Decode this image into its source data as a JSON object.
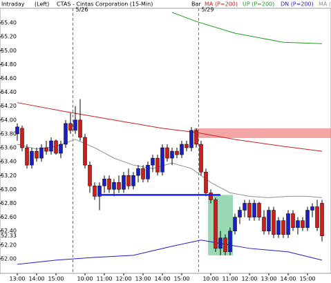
{
  "chart_data": {
    "type": "candlestick",
    "header": [
      "Intraday",
      "(Left)",
      "CTAS - Cintas Corporation (15-Min)"
    ],
    "bar_label": "Bar",
    "categories": [
      "13:00",
      null,
      null,
      null,
      "14:00",
      null,
      null,
      null,
      "15:00",
      null,
      null,
      null,
      null,
      null,
      "10:00",
      null,
      null,
      null,
      "11:00",
      null,
      null,
      null,
      "12:00",
      null,
      null,
      null,
      "13:00",
      null,
      null,
      null,
      "14:00",
      null,
      null,
      null,
      "15:00",
      null,
      null,
      null,
      null,
      null,
      "10:00",
      null,
      null,
      null,
      "11:00",
      null,
      null,
      null,
      "12:00",
      null,
      null,
      null,
      "13:00",
      null,
      null,
      null,
      "14:00",
      null,
      null,
      null,
      "15:00",
      null,
      null,
      null
    ],
    "date_labels": [
      {
        "label": "5/26",
        "index": 12
      },
      {
        "label": "5/29",
        "index": 38
      }
    ],
    "candles": {
      "up_color": "#1c1cc8",
      "down_color": "#d01c1c",
      "open": [
        53.8,
        53.88,
        53.6,
        53.35,
        53.55,
        53.45,
        53.6,
        53.55,
        53.7,
        53.52,
        53.65,
        53.95,
        53.85,
        54.0,
        53.75,
        53.35,
        53.05,
        52.9,
        53.05,
        53.15,
        53.0,
        53.1,
        53.0,
        53.2,
        53.05,
        53.2,
        53.3,
        53.15,
        53.35,
        53.45,
        53.25,
        53.6,
        53.45,
        53.55,
        53.5,
        53.65,
        53.6,
        53.85,
        53.65,
        53.25,
        52.95,
        52.85,
        52.15,
        52.3,
        52.1,
        52.4,
        52.6,
        52.7,
        52.8,
        52.6,
        52.8,
        52.6,
        52.4,
        52.7,
        52.35,
        52.55,
        52.35,
        52.65,
        52.45,
        52.55,
        52.45,
        52.7,
        52.75,
        52.8
      ],
      "high": [
        53.95,
        53.92,
        53.65,
        53.6,
        53.6,
        53.65,
        53.7,
        53.75,
        53.72,
        53.7,
        54.0,
        54.1,
        54.2,
        54.3,
        53.8,
        53.4,
        53.1,
        53.1,
        53.2,
        53.2,
        53.15,
        53.2,
        53.25,
        53.3,
        53.25,
        53.35,
        53.35,
        53.4,
        53.5,
        53.5,
        53.65,
        53.65,
        53.6,
        53.6,
        53.7,
        53.7,
        53.9,
        53.88,
        53.7,
        53.3,
        53.0,
        52.88,
        52.4,
        52.35,
        52.45,
        52.65,
        52.75,
        52.85,
        52.85,
        52.85,
        52.82,
        52.7,
        52.75,
        52.75,
        52.6,
        52.6,
        52.7,
        52.7,
        52.6,
        52.6,
        52.75,
        52.8,
        52.85,
        52.85
      ],
      "low": [
        53.7,
        53.55,
        53.3,
        53.3,
        53.4,
        53.4,
        53.5,
        53.5,
        53.5,
        53.45,
        53.6,
        53.8,
        53.8,
        53.7,
        53.3,
        52.95,
        52.85,
        52.7,
        52.95,
        52.95,
        52.9,
        52.95,
        52.95,
        53.0,
        53.0,
        53.1,
        53.1,
        53.1,
        53.25,
        53.2,
        53.2,
        53.4,
        53.35,
        53.45,
        53.45,
        53.55,
        53.55,
        53.6,
        53.2,
        52.9,
        52.8,
        52.1,
        52.05,
        52.05,
        52.05,
        52.35,
        52.5,
        52.6,
        52.55,
        52.55,
        52.55,
        52.35,
        52.35,
        52.3,
        52.3,
        52.3,
        52.3,
        52.4,
        52.35,
        52.4,
        52.4,
        52.6,
        52.4,
        52.25
      ],
      "close": [
        53.9,
        53.6,
        53.35,
        53.55,
        53.45,
        53.6,
        53.55,
        53.7,
        53.52,
        53.65,
        53.95,
        53.85,
        54.0,
        53.75,
        53.35,
        53.05,
        52.9,
        53.05,
        53.15,
        53.0,
        53.1,
        53.0,
        53.2,
        53.05,
        53.2,
        53.3,
        53.15,
        53.35,
        53.45,
        53.25,
        53.6,
        53.45,
        53.55,
        53.5,
        53.65,
        53.6,
        53.85,
        53.65,
        53.25,
        52.95,
        52.85,
        52.15,
        52.3,
        52.1,
        52.4,
        52.6,
        52.7,
        52.8,
        52.6,
        52.8,
        52.6,
        52.4,
        52.7,
        52.35,
        52.55,
        52.35,
        52.65,
        52.45,
        52.55,
        52.45,
        52.7,
        52.75,
        52.45,
        52.33
      ]
    },
    "series": [
      {
        "name": "MA (P=200)",
        "color": "#d01c1c",
        "x": [
          0,
          10,
          20,
          30,
          37,
          45,
          55,
          63
        ],
        "values": [
          54.25,
          54.12,
          54.0,
          53.88,
          53.82,
          53.72,
          53.62,
          53.55
        ]
      },
      {
        "name": "UP (P=200)",
        "color": "#1aa01a",
        "x": [
          32,
          37,
          45,
          55,
          63
        ],
        "values": [
          55.55,
          55.42,
          55.25,
          55.12,
          55.1
        ]
      },
      {
        "name": "DN (P=200)",
        "color": "#1c1cc8",
        "x": [
          0,
          8,
          16,
          24,
          32,
          38,
          42,
          48,
          56,
          63
        ],
        "values": [
          51.92,
          51.98,
          52.02,
          52.05,
          52.18,
          52.27,
          52.22,
          52.15,
          52.1,
          51.98
        ]
      },
      {
        "name": "MA (",
        "color": "#909090",
        "x": [
          0,
          4,
          8,
          12,
          16,
          20,
          24,
          28,
          32,
          36,
          40,
          44,
          48,
          52,
          56,
          60,
          63
        ],
        "values": [
          53.65,
          53.58,
          53.62,
          53.72,
          53.6,
          53.45,
          53.35,
          53.3,
          53.38,
          53.3,
          53.1,
          52.95,
          52.9,
          52.88,
          52.9,
          52.9,
          52.88
        ]
      }
    ],
    "support_line": {
      "value": 52.92,
      "from": 17,
      "to": 42,
      "color": "#1c1cff"
    },
    "resistance_zone": {
      "low": 53.74,
      "high": 53.88,
      "from": 37,
      "color": "#f08080"
    },
    "highlight_box": {
      "low": 52.05,
      "high": 52.92,
      "from": 40,
      "to": 44,
      "color": "#80d0a0"
    },
    "last_price_label": {
      "value": 52.33,
      "label": "52.33"
    },
    "ylim": [
      51.8,
      55.55
    ],
    "yticks": [
      {
        "value": 52,
        "label": "52.00"
      },
      {
        "value": 52.2,
        "label": "52.20"
      },
      {
        "value": 52.4,
        "label": "52.40"
      },
      {
        "value": 52.6,
        "label": "52.60"
      },
      {
        "value": 52.8,
        "label": "52.80"
      },
      {
        "value": 53,
        "label": "53.00"
      },
      {
        "value": 53.2,
        "label": "53.20"
      },
      {
        "value": 53.4,
        "label": "53.40"
      },
      {
        "value": 53.6,
        "label": "53.60"
      },
      {
        "value": 53.8,
        "label": "53.80"
      },
      {
        "value": 54,
        "label": "54.00"
      },
      {
        "value": 54.2,
        "label": "54.20"
      },
      {
        "value": 54.4,
        "label": "54.40"
      },
      {
        "value": 54.6,
        "label": "54.60"
      },
      {
        "value": 54.8,
        "label": "54.80"
      },
      {
        "value": 55,
        "label": "55.00"
      },
      {
        "value": 55.2,
        "label": "55.20"
      },
      {
        "value": 55.4,
        "label": "55.40"
      }
    ]
  }
}
